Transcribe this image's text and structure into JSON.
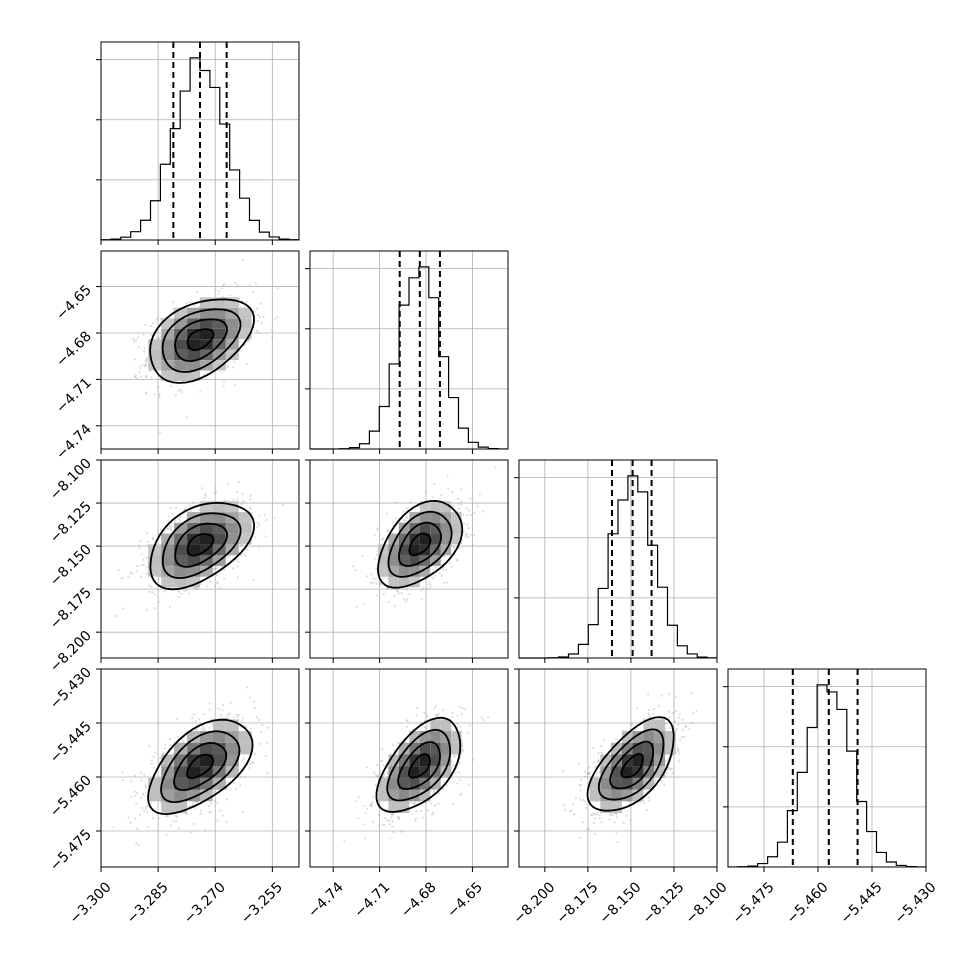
{
  "chart_data": {
    "type": "corner",
    "grid": true,
    "parameters": [
      {
        "range": [
          -3.3,
          -3.248
        ],
        "ticks": [
          -3.3,
          -3.285,
          -3.27,
          -3.255
        ],
        "tick_labels": [
          "−3.300",
          "−3.285",
          "−3.270",
          "−3.255"
        ],
        "mean": -3.274,
        "std": 0.0068,
        "quantiles": [
          -3.281,
          -3.274,
          -3.267
        ]
      },
      {
        "range": [
          -4.755,
          -4.627
        ],
        "ticks": [
          -4.74,
          -4.71,
          -4.68,
          -4.65
        ],
        "tick_labels": [
          "−4.74",
          "−4.71",
          "−4.68",
          "−4.65"
        ],
        "mean": -4.684,
        "std": 0.0135,
        "quantiles": [
          -4.697,
          -4.684,
          -4.671
        ]
      },
      {
        "range": [
          -8.215,
          -8.1
        ],
        "ticks": [
          -8.2,
          -8.175,
          -8.15,
          -8.125,
          -8.1
        ],
        "tick_labels": [
          "−8.200",
          "−8.175",
          "−8.150",
          "−8.125",
          "−8.100"
        ],
        "mean": -8.149,
        "std": 0.0125,
        "quantiles": [
          -8.161,
          -8.149,
          -8.138
        ]
      },
      {
        "range": [
          -5.485,
          -5.43
        ],
        "ticks": [
          -5.475,
          -5.46,
          -5.445,
          -5.43
        ],
        "tick_labels": [
          "−5.475",
          "−5.460",
          "−5.445",
          "−5.430"
        ],
        "mean": -5.457,
        "std": 0.0065,
        "quantiles": [
          -5.467,
          -5.457,
          -5.449
        ]
      }
    ],
    "correlations": [
      [
        1.0,
        0.4,
        0.45,
        0.55
      ],
      [
        0.4,
        1.0,
        0.45,
        0.55
      ],
      [
        0.45,
        0.45,
        1.0,
        0.6
      ],
      [
        0.55,
        0.55,
        0.6,
        1.0
      ]
    ]
  }
}
